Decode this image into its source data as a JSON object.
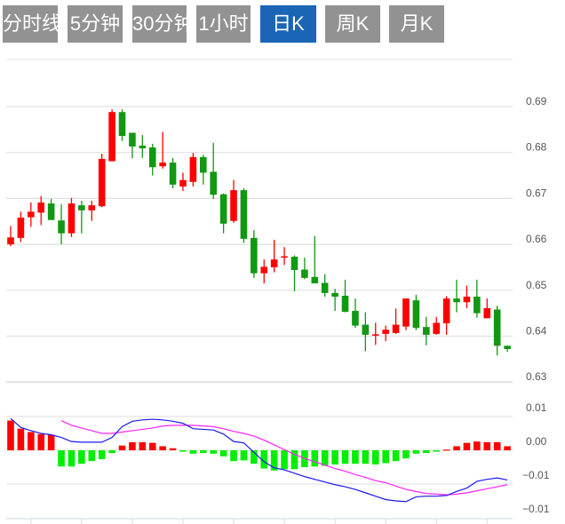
{
  "tabs": [
    {
      "label": "分时线",
      "active": false
    },
    {
      "label": "5分钟",
      "active": false
    },
    {
      "label": "30分钟",
      "active": false
    },
    {
      "label": "1小时",
      "active": false
    },
    {
      "label": "日K",
      "active": true
    },
    {
      "label": "周K",
      "active": false
    },
    {
      "label": "月K",
      "active": false
    }
  ],
  "colors": {
    "up": "#ff0000",
    "down": "#129812",
    "hist_up": "#ff0000",
    "hist_down": "#00ee00",
    "dif": "#1a1aee",
    "dea": "#ff22ff",
    "tab": "#929292",
    "tab_active": "#1a65b5"
  },
  "chart_data": [
    {
      "type": "candlestick",
      "title": "",
      "ylim": [
        0.63,
        0.7
      ],
      "y_ticks": [
        {
          "value": 0.69,
          "label": "0.69"
        },
        {
          "value": 0.68,
          "label": "0.68"
        },
        {
          "value": 0.67,
          "label": "0.67"
        },
        {
          "value": 0.66,
          "label": "0.66"
        },
        {
          "value": 0.65,
          "label": "0.65"
        },
        {
          "value": 0.64,
          "label": "0.64"
        },
        {
          "value": 0.63,
          "label": "0.63"
        }
      ],
      "grid": true,
      "ohlc": [
        [
          0.66,
          0.664,
          0.6596,
          0.6615
        ],
        [
          0.6614,
          0.6671,
          0.6605,
          0.6658
        ],
        [
          0.6659,
          0.6691,
          0.6638,
          0.6671
        ],
        [
          0.6669,
          0.6705,
          0.6642,
          0.6691
        ],
        [
          0.6689,
          0.6699,
          0.6653,
          0.6653
        ],
        [
          0.6652,
          0.6687,
          0.66,
          0.6624
        ],
        [
          0.6624,
          0.6701,
          0.6616,
          0.6689
        ],
        [
          0.6685,
          0.6695,
          0.6624,
          0.6674
        ],
        [
          0.6674,
          0.6695,
          0.6651,
          0.6685
        ],
        [
          0.6683,
          0.6797,
          0.6681,
          0.6786
        ],
        [
          0.6781,
          0.6894,
          0.6781,
          0.6888
        ],
        [
          0.6888,
          0.6894,
          0.6825,
          0.6836
        ],
        [
          0.6843,
          0.6843,
          0.6787,
          0.6813
        ],
        [
          0.6815,
          0.6838,
          0.6788,
          0.6809
        ],
        [
          0.6811,
          0.6819,
          0.675,
          0.6768
        ],
        [
          0.677,
          0.6845,
          0.6765,
          0.6778
        ],
        [
          0.6778,
          0.6788,
          0.6722,
          0.673
        ],
        [
          0.6726,
          0.6756,
          0.6716,
          0.674
        ],
        [
          0.6736,
          0.6799,
          0.6726,
          0.679
        ],
        [
          0.679,
          0.6795,
          0.673,
          0.6756
        ],
        [
          0.6758,
          0.6821,
          0.6699,
          0.6708
        ],
        [
          0.6709,
          0.6711,
          0.6624,
          0.6645
        ],
        [
          0.6651,
          0.674,
          0.6647,
          0.6718
        ],
        [
          0.6718,
          0.6722,
          0.6603,
          0.6612
        ],
        [
          0.6614,
          0.6631,
          0.6527,
          0.6537
        ],
        [
          0.6537,
          0.6567,
          0.6515,
          0.6551
        ],
        [
          0.655,
          0.661,
          0.6539,
          0.6567
        ],
        [
          0.6572,
          0.6594,
          0.6555,
          0.6574
        ],
        [
          0.6573,
          0.6576,
          0.6498,
          0.6544
        ],
        [
          0.6545,
          0.6571,
          0.6524,
          0.6527
        ],
        [
          0.6529,
          0.6618,
          0.6515,
          0.6515
        ],
        [
          0.6516,
          0.6535,
          0.6486,
          0.6494
        ],
        [
          0.6494,
          0.6503,
          0.6455,
          0.6486
        ],
        [
          0.6488,
          0.6523,
          0.6452,
          0.6453
        ],
        [
          0.6455,
          0.6482,
          0.6418,
          0.6423
        ],
        [
          0.6425,
          0.6452,
          0.6367,
          0.6403
        ],
        [
          0.6402,
          0.6429,
          0.6381,
          0.6404
        ],
        [
          0.6405,
          0.6423,
          0.6389,
          0.6414
        ],
        [
          0.6407,
          0.646,
          0.6405,
          0.6425
        ],
        [
          0.6421,
          0.6482,
          0.6413,
          0.6482
        ],
        [
          0.6478,
          0.649,
          0.6413,
          0.6418
        ],
        [
          0.642,
          0.6442,
          0.638,
          0.6403
        ],
        [
          0.6405,
          0.6442,
          0.6403,
          0.6429
        ],
        [
          0.6428,
          0.6487,
          0.6403,
          0.6482
        ],
        [
          0.6482,
          0.6523,
          0.6452,
          0.6474
        ],
        [
          0.6474,
          0.651,
          0.6461,
          0.6486
        ],
        [
          0.6486,
          0.6523,
          0.644,
          0.645
        ],
        [
          0.6439,
          0.6482,
          0.6439,
          0.6461
        ],
        [
          0.6458,
          0.6466,
          0.6358,
          0.6379
        ],
        [
          0.6379,
          0.638,
          0.6366,
          0.6372
        ]
      ]
    },
    {
      "type": "macd",
      "y_ticks": [
        {
          "value": 0.005,
          "label": "0.01"
        },
        {
          "value": 0,
          "label": "0.00"
        },
        {
          "value": -0.005,
          "label": "−0.01"
        },
        {
          "value": -0.01,
          "label": "−0.01"
        }
      ],
      "grid": true,
      "histogram": [
        0.0044,
        0.0032,
        0.0027,
        0.0024,
        0.0023,
        -0.0024,
        -0.0024,
        -0.002,
        -0.0016,
        -0.0013,
        -0.0004,
        0.0007,
        0.0012,
        0.0012,
        0.0011,
        0.0006,
        0.0003,
        -0.0002,
        -0.0005,
        -0.0004,
        -0.0005,
        -0.0009,
        -0.0016,
        -0.0015,
        -0.002,
        -0.0027,
        -0.003,
        -0.0028,
        -0.0028,
        -0.0025,
        -0.0024,
        -0.0023,
        -0.0021,
        -0.002,
        -0.002,
        -0.002,
        -0.0021,
        -0.0019,
        -0.0016,
        -0.0012,
        -0.0005,
        -0.0004,
        -0.0002,
        0.0001,
        0.0006,
        0.0011,
        0.0013,
        0.0012,
        0.0012,
        0.0006
      ],
      "dif": [
        0.0047,
        0.0034,
        0.0029,
        0.0025,
        0.0023,
        0.0019,
        0.0013,
        0.0012,
        0.0012,
        0.0012,
        0.0019,
        0.0035,
        0.0043,
        0.0045,
        0.0046,
        0.0045,
        0.0043,
        0.004,
        0.0032,
        0.0031,
        0.003,
        0.0024,
        0.0013,
        0.0011,
        -0.0003,
        -0.0017,
        -0.0026,
        -0.0029,
        -0.0034,
        -0.0039,
        -0.0043,
        -0.0047,
        -0.0051,
        -0.0054,
        -0.0058,
        -0.0063,
        -0.0068,
        -0.0073,
        -0.0075,
        -0.0076,
        -0.0069,
        -0.0068,
        -0.0068,
        -0.0067,
        -0.0061,
        -0.0056,
        -0.0046,
        -0.0043,
        -0.0041,
        -0.0044
      ],
      "dea": [
        null,
        null,
        null,
        null,
        null,
        0.0044,
        0.0037,
        0.0033,
        0.0029,
        0.0025,
        0.0025,
        0.0027,
        0.0029,
        0.0031,
        0.0033,
        0.0036,
        0.0037,
        0.0037,
        0.0037,
        0.0036,
        0.0035,
        0.0032,
        0.0028,
        0.0025,
        0.0021,
        0.0015,
        0.0008,
        0.0001,
        -0.0006,
        -0.0012,
        -0.0017,
        -0.0022,
        -0.0027,
        -0.0031,
        -0.0036,
        -0.004,
        -0.0045,
        -0.0048,
        -0.0053,
        -0.0058,
        -0.0061,
        -0.0064,
        -0.0065,
        -0.0066,
        -0.0065,
        -0.0063,
        -0.006,
        -0.0057,
        -0.0054,
        -0.0051
      ]
    }
  ]
}
